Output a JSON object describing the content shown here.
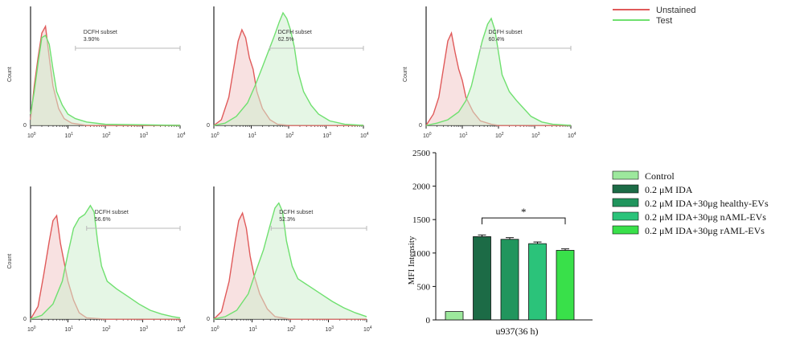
{
  "colors": {
    "unstained": "#e05a5a",
    "test": "#6fe06f",
    "axis": "#222222",
    "gate": "#b8b8b8",
    "fill_unstained": "#f3c9c9",
    "fill_test": "#cfeecf"
  },
  "legend_flow": {
    "items": [
      {
        "label": "Unstained",
        "color": "#e05a5a"
      },
      {
        "label": "Test",
        "color": "#6fe06f"
      }
    ]
  },
  "chart_data": [
    {
      "type": "histogram",
      "ylabel": "Count",
      "x_ticks": [
        "0",
        "1",
        "2",
        "3",
        "4"
      ],
      "y_tick_zero": "0",
      "gate": {
        "name": "DCFH subset",
        "percent": "3.90%",
        "from_log": 1.2,
        "to_log": 4.0
      },
      "series": [
        {
          "key": "unstained",
          "color": "#e05a5a",
          "points": [
            [
              0,
              0.05
            ],
            [
              0.1,
              0.35
            ],
            [
              0.2,
              0.6
            ],
            [
              0.3,
              0.82
            ],
            [
              0.4,
              0.88
            ],
            [
              0.5,
              0.6
            ],
            [
              0.6,
              0.35
            ],
            [
              0.75,
              0.15
            ],
            [
              0.9,
              0.06
            ],
            [
              1.1,
              0.02
            ],
            [
              1.5,
              0
            ],
            [
              4,
              0
            ]
          ]
        },
        {
          "key": "test",
          "color": "#6fe06f",
          "points": [
            [
              0,
              0.1
            ],
            [
              0.1,
              0.3
            ],
            [
              0.2,
              0.55
            ],
            [
              0.3,
              0.78
            ],
            [
              0.4,
              0.8
            ],
            [
              0.5,
              0.72
            ],
            [
              0.6,
              0.5
            ],
            [
              0.7,
              0.3
            ],
            [
              0.85,
              0.18
            ],
            [
              1.0,
              0.1
            ],
            [
              1.2,
              0.06
            ],
            [
              1.5,
              0.03
            ],
            [
              2,
              0.01
            ],
            [
              4,
              0
            ]
          ]
        }
      ]
    },
    {
      "type": "histogram",
      "ylabel": "",
      "x_ticks": [
        "0",
        "1",
        "2",
        "3",
        "4"
      ],
      "y_tick_zero": "0",
      "gate": {
        "name": "DCFH subset",
        "percent": "62.5%",
        "from_log": 1.5,
        "to_log": 4.0
      },
      "series": [
        {
          "key": "unstained",
          "color": "#e05a5a",
          "points": [
            [
              0,
              0
            ],
            [
              0.2,
              0.05
            ],
            [
              0.4,
              0.25
            ],
            [
              0.55,
              0.55
            ],
            [
              0.65,
              0.75
            ],
            [
              0.75,
              0.85
            ],
            [
              0.85,
              0.78
            ],
            [
              0.95,
              0.6
            ],
            [
              1.05,
              0.5
            ],
            [
              1.15,
              0.3
            ],
            [
              1.3,
              0.15
            ],
            [
              1.5,
              0.05
            ],
            [
              1.7,
              0.01
            ],
            [
              2,
              0
            ],
            [
              4,
              0
            ]
          ]
        },
        {
          "key": "test",
          "color": "#6fe06f",
          "points": [
            [
              0,
              0
            ],
            [
              0.3,
              0.02
            ],
            [
              0.6,
              0.08
            ],
            [
              0.9,
              0.2
            ],
            [
              1.1,
              0.35
            ],
            [
              1.3,
              0.52
            ],
            [
              1.45,
              0.65
            ],
            [
              1.6,
              0.78
            ],
            [
              1.75,
              0.92
            ],
            [
              1.85,
              1.0
            ],
            [
              1.95,
              0.95
            ],
            [
              2.05,
              0.85
            ],
            [
              2.15,
              0.7
            ],
            [
              2.25,
              0.48
            ],
            [
              2.4,
              0.3
            ],
            [
              2.6,
              0.18
            ],
            [
              2.8,
              0.1
            ],
            [
              3.1,
              0.04
            ],
            [
              3.5,
              0.01
            ],
            [
              4,
              0
            ]
          ]
        }
      ]
    },
    {
      "type": "histogram",
      "ylabel": "Count",
      "x_ticks": [
        "0",
        "1",
        "2",
        "3",
        "4"
      ],
      "y_tick_zero": "0",
      "gate": {
        "name": "DCFH subset",
        "percent": "60.4%",
        "from_log": 1.5,
        "to_log": 4.0
      },
      "series": [
        {
          "key": "unstained",
          "color": "#e05a5a",
          "points": [
            [
              0,
              0
            ],
            [
              0.2,
              0.1
            ],
            [
              0.35,
              0.25
            ],
            [
              0.5,
              0.55
            ],
            [
              0.6,
              0.75
            ],
            [
              0.7,
              0.82
            ],
            [
              0.8,
              0.65
            ],
            [
              0.9,
              0.5
            ],
            [
              1.0,
              0.4
            ],
            [
              1.1,
              0.25
            ],
            [
              1.3,
              0.12
            ],
            [
              1.5,
              0.04
            ],
            [
              1.8,
              0.01
            ],
            [
              2,
              0
            ],
            [
              4,
              0
            ]
          ]
        },
        {
          "key": "test",
          "color": "#6fe06f",
          "points": [
            [
              0,
              0
            ],
            [
              0.3,
              0.02
            ],
            [
              0.6,
              0.05
            ],
            [
              0.9,
              0.12
            ],
            [
              1.1,
              0.22
            ],
            [
              1.25,
              0.35
            ],
            [
              1.4,
              0.55
            ],
            [
              1.55,
              0.75
            ],
            [
              1.7,
              0.9
            ],
            [
              1.8,
              0.95
            ],
            [
              1.9,
              0.85
            ],
            [
              2.0,
              0.65
            ],
            [
              2.1,
              0.45
            ],
            [
              2.3,
              0.3
            ],
            [
              2.5,
              0.22
            ],
            [
              2.7,
              0.15
            ],
            [
              2.9,
              0.08
            ],
            [
              3.2,
              0.03
            ],
            [
              3.5,
              0.01
            ],
            [
              4,
              0
            ]
          ]
        }
      ]
    },
    {
      "type": "histogram",
      "ylabel": "Count",
      "x_ticks": [
        "0",
        "1",
        "2",
        "3",
        "4"
      ],
      "y_tick_zero": "0",
      "gate": {
        "name": "DCFH subset",
        "percent": "56.6%",
        "from_log": 1.5,
        "to_log": 4.0
      },
      "series": [
        {
          "key": "unstained",
          "color": "#e05a5a",
          "points": [
            [
              0,
              0
            ],
            [
              0.2,
              0.1
            ],
            [
              0.35,
              0.35
            ],
            [
              0.5,
              0.62
            ],
            [
              0.6,
              0.78
            ],
            [
              0.7,
              0.82
            ],
            [
              0.8,
              0.6
            ],
            [
              0.9,
              0.45
            ],
            [
              1.0,
              0.3
            ],
            [
              1.15,
              0.15
            ],
            [
              1.3,
              0.05
            ],
            [
              1.5,
              0.01
            ],
            [
              2,
              0
            ],
            [
              4,
              0
            ]
          ]
        },
        {
          "key": "test",
          "color": "#6fe06f",
          "points": [
            [
              0,
              0
            ],
            [
              0.3,
              0.03
            ],
            [
              0.6,
              0.12
            ],
            [
              0.85,
              0.3
            ],
            [
              1.0,
              0.52
            ],
            [
              1.15,
              0.72
            ],
            [
              1.3,
              0.8
            ],
            [
              1.45,
              0.83
            ],
            [
              1.6,
              0.9
            ],
            [
              1.7,
              0.85
            ],
            [
              1.8,
              0.6
            ],
            [
              1.9,
              0.42
            ],
            [
              2.05,
              0.3
            ],
            [
              2.3,
              0.24
            ],
            [
              2.6,
              0.18
            ],
            [
              2.9,
              0.12
            ],
            [
              3.2,
              0.07
            ],
            [
              3.5,
              0.04
            ],
            [
              3.8,
              0.02
            ],
            [
              4,
              0.01
            ]
          ]
        }
      ]
    },
    {
      "type": "histogram",
      "ylabel": "",
      "x_ticks": [
        "0",
        "1",
        "2",
        "3",
        "4"
      ],
      "y_tick_zero": "0",
      "gate": {
        "name": "DCFH subset",
        "percent": "52.3%",
        "from_log": 1.5,
        "to_log": 4.0
      },
      "series": [
        {
          "key": "unstained",
          "color": "#e05a5a",
          "points": [
            [
              0,
              0
            ],
            [
              0.2,
              0.06
            ],
            [
              0.4,
              0.3
            ],
            [
              0.55,
              0.6
            ],
            [
              0.65,
              0.78
            ],
            [
              0.75,
              0.84
            ],
            [
              0.85,
              0.72
            ],
            [
              0.95,
              0.5
            ],
            [
              1.05,
              0.35
            ],
            [
              1.2,
              0.2
            ],
            [
              1.4,
              0.08
            ],
            [
              1.6,
              0.02
            ],
            [
              2,
              0
            ],
            [
              4,
              0
            ]
          ]
        },
        {
          "key": "test",
          "color": "#6fe06f",
          "points": [
            [
              0,
              0
            ],
            [
              0.3,
              0.02
            ],
            [
              0.6,
              0.07
            ],
            [
              0.9,
              0.2
            ],
            [
              1.1,
              0.38
            ],
            [
              1.3,
              0.55
            ],
            [
              1.45,
              0.72
            ],
            [
              1.6,
              0.88
            ],
            [
              1.7,
              0.92
            ],
            [
              1.8,
              0.85
            ],
            [
              1.9,
              0.62
            ],
            [
              2.05,
              0.42
            ],
            [
              2.2,
              0.32
            ],
            [
              2.5,
              0.26
            ],
            [
              2.8,
              0.2
            ],
            [
              3.1,
              0.14
            ],
            [
              3.4,
              0.09
            ],
            [
              3.7,
              0.05
            ],
            [
              4,
              0.02
            ]
          ]
        }
      ]
    },
    {
      "type": "bar",
      "ylabel": "MFI Intensity",
      "xlabel": "u937(36 h)",
      "ylim": [
        0,
        2500
      ],
      "y_ticks": [
        0,
        500,
        1000,
        1500,
        2000,
        2500
      ],
      "categories": [
        "Control",
        "0.2 μM IDA",
        "0.2 μM IDA+30μg healthy-EVs",
        "0.2 μM IDA+30μg nAML-EVs",
        "0.2 μM IDA+30μg rAML-EVs"
      ],
      "values": [
        125,
        1245,
        1205,
        1140,
        1040
      ],
      "errors": [
        0,
        25,
        25,
        25,
        22
      ],
      "colors": [
        "#9de89d",
        "#1c6b46",
        "#21955d",
        "#2bc37a",
        "#39e04a"
      ],
      "significance": {
        "label": "*",
        "from_index": 1,
        "to_index": 4
      }
    }
  ]
}
